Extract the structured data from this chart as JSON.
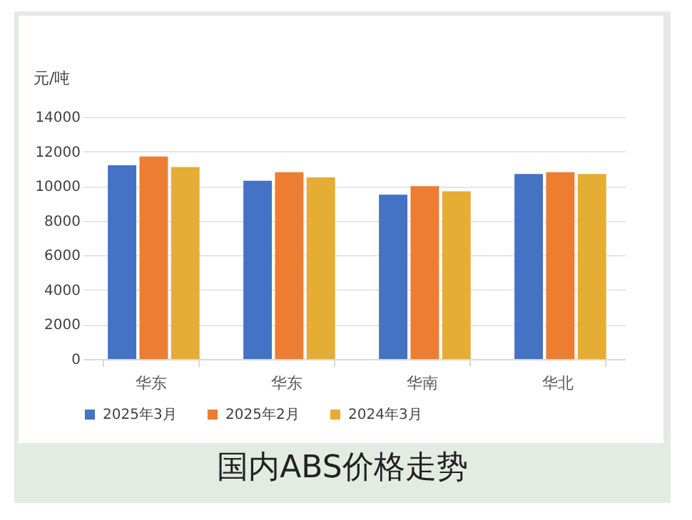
{
  "chart_data": {
    "type": "bar",
    "title": "国内ABS价格走势",
    "ylabel": "元/吨",
    "categories": [
      "华东",
      "华东",
      "华南",
      "华北"
    ],
    "series": [
      {
        "name": "2025年3月",
        "color": "#4472c4",
        "values": [
          11200,
          10300,
          9500,
          10700
        ]
      },
      {
        "name": "2025年2月",
        "color": "#ed7d31",
        "values": [
          11700,
          10800,
          10000,
          10800
        ]
      },
      {
        "name": "2024年3月",
        "color": "#e6ad34",
        "values": [
          11100,
          10500,
          9700,
          10700
        ]
      }
    ],
    "ylim": [
      0,
      14000
    ],
    "yticks": [
      0,
      2000,
      4000,
      6000,
      8000,
      10000,
      12000,
      14000
    ],
    "grid": "y",
    "legend": "bottom"
  }
}
